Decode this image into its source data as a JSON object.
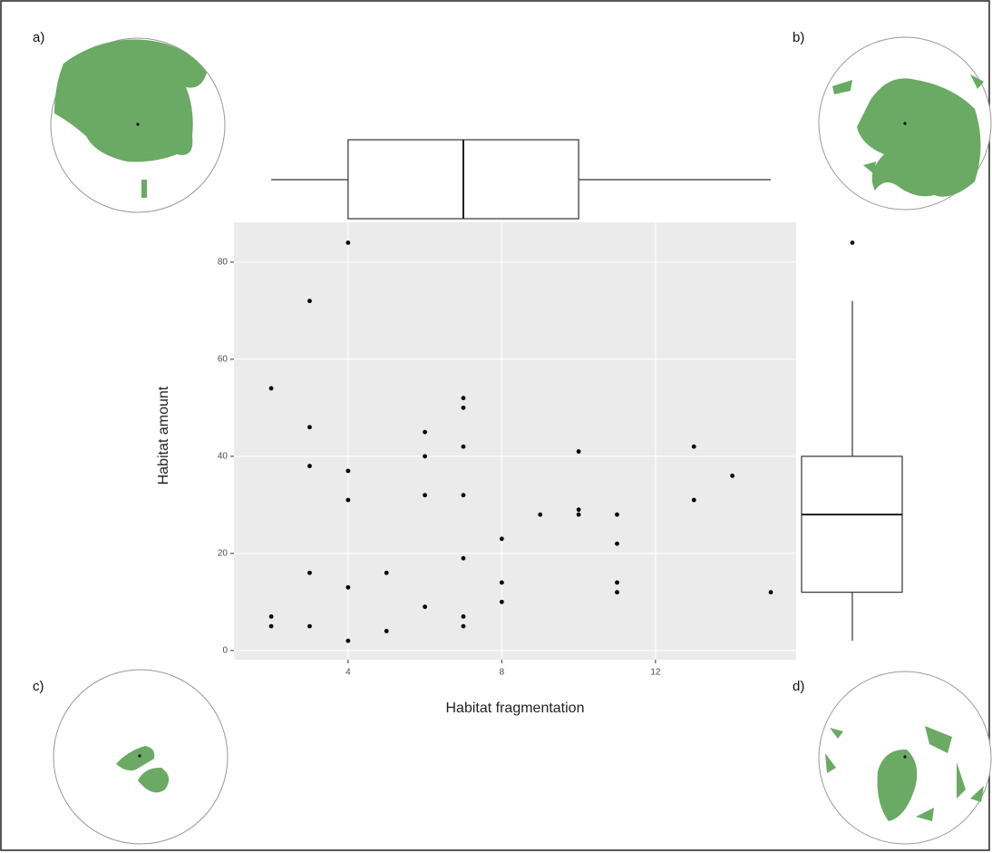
{
  "chart_data": {
    "type": "scatter",
    "xlabel": "Habitat fragmentation",
    "ylabel": "Habitat amount",
    "x": [
      2,
      2,
      2,
      3,
      3,
      3,
      3,
      3,
      4,
      4,
      4,
      4,
      4,
      5,
      5,
      6,
      6,
      6,
      6,
      7,
      7,
      7,
      7,
      7,
      7,
      7,
      8,
      8,
      8,
      9,
      10,
      10,
      10,
      11,
      11,
      11,
      11,
      13,
      13,
      14,
      15
    ],
    "values": [
      54,
      7,
      5,
      72,
      46,
      38,
      16,
      5,
      84,
      37,
      31,
      13,
      2,
      16,
      4,
      45,
      40,
      32,
      9,
      52,
      50,
      42,
      32,
      19,
      7,
      5,
      23,
      14,
      10,
      28,
      41,
      29,
      28,
      28,
      22,
      14,
      12,
      42,
      31,
      36,
      12
    ],
    "color": "#000000",
    "xlim": [
      1.03,
      15.66
    ],
    "xticks": [
      4,
      8,
      12
    ],
    "ylim": [
      -1.9,
      88.2
    ],
    "yticks": [
      0,
      20,
      40,
      60,
      80
    ],
    "grid": true,
    "boxplot_x": {
      "min": 2,
      "q1": 4,
      "median": 7,
      "q3": 10,
      "max": 15
    },
    "boxplot_y": {
      "min": 2,
      "q1": 12,
      "median": 28,
      "q3": 40,
      "max": 72,
      "outliers": [
        84
      ]
    },
    "panel_labels": [
      "a)",
      "b)",
      "c)",
      "d)"
    ]
  }
}
